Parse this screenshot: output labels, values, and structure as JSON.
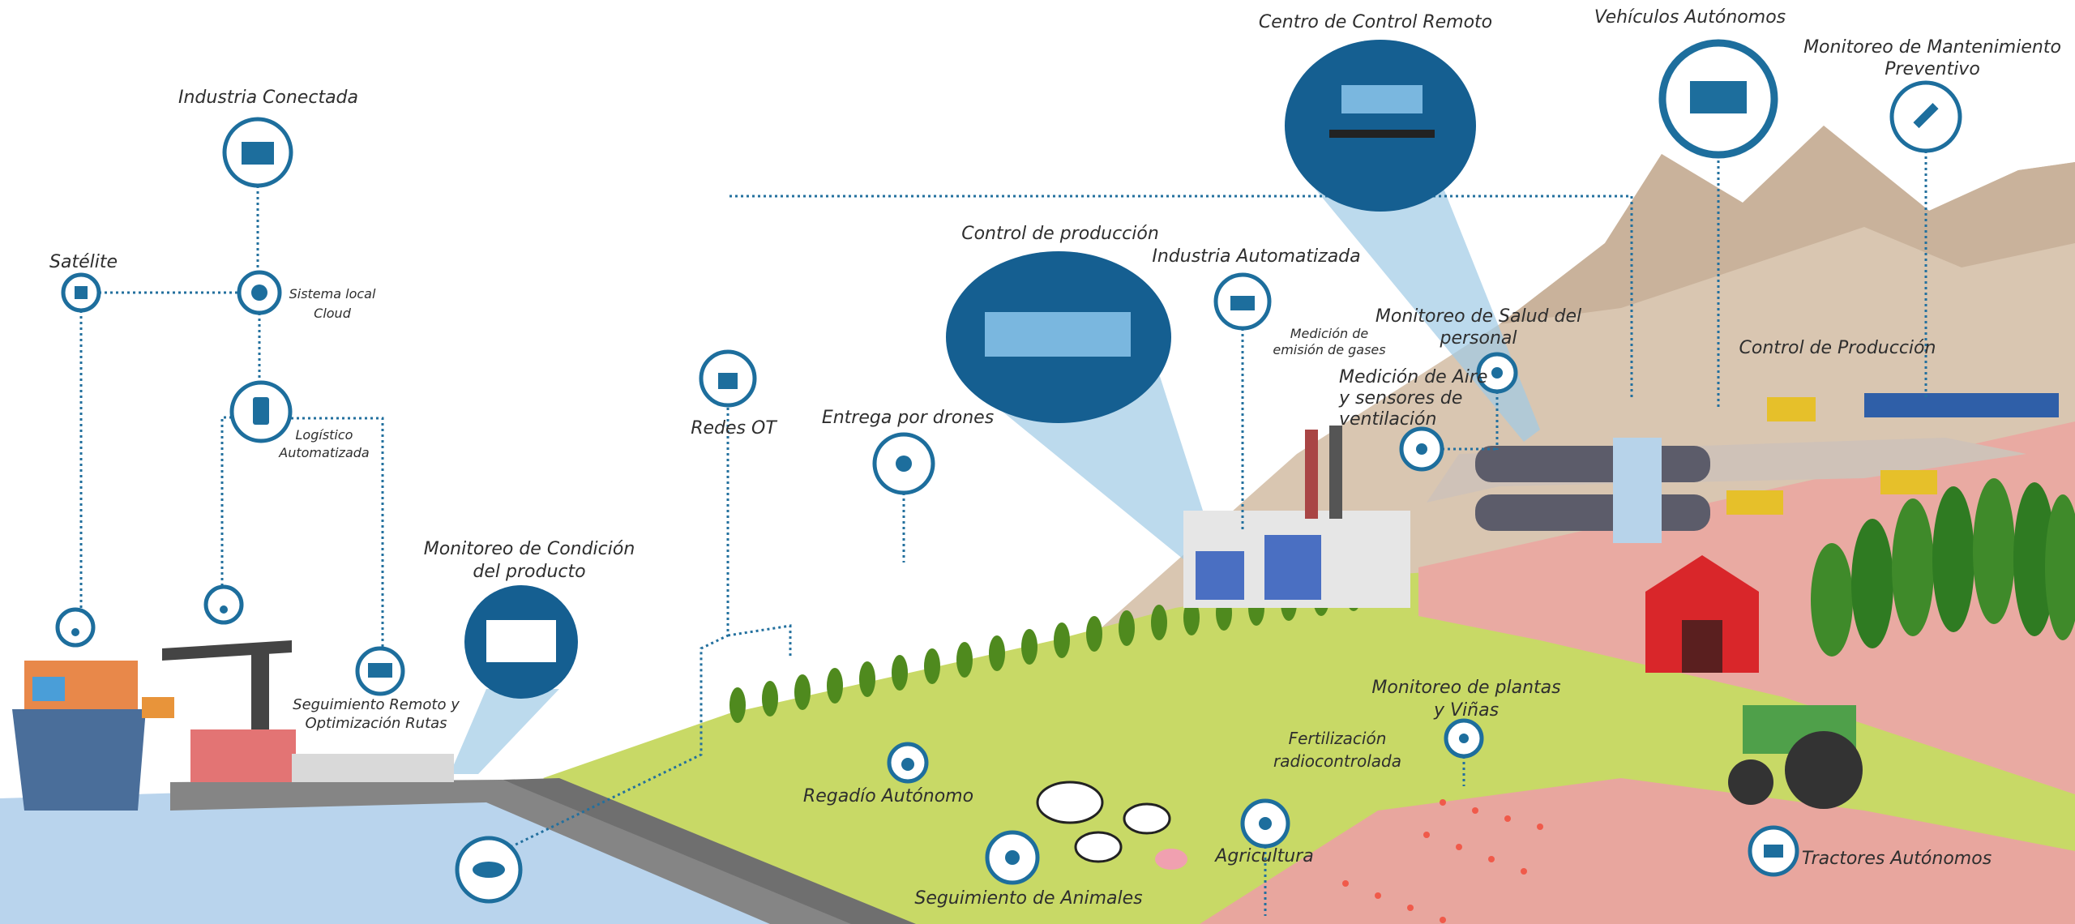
{
  "labels": {
    "industria_conectada": [
      "Industria Conectada"
    ],
    "satelite": [
      "Satélite"
    ],
    "sistema_local": [
      "Sistema local",
      "Cloud"
    ],
    "logistico": [
      "Logístico",
      "Automatizada"
    ],
    "monitoreo_condicion": [
      "Monitoreo de Condición",
      "del producto"
    ],
    "seguimiento_remoto": [
      "Seguimiento Remoto y",
      "Optimización Rutas"
    ],
    "redes_ot": [
      "Redes OT"
    ],
    "entrega_drones": [
      "Entrega por drones"
    ],
    "control_produccion_fabrica": [
      "Control de producción"
    ],
    "industria_automatizada": [
      "Industria Automatizada"
    ],
    "centro_control": [
      "Centro de Control Remoto"
    ],
    "vehiculos_autonomos": [
      "Vehículos Autónomos"
    ],
    "mantenimiento": [
      "Monitoreo de Mantenimiento",
      "Preventivo"
    ],
    "emision_gases": [
      "Medición de",
      "emisión de gases"
    ],
    "salud_personal": [
      "Monitoreo de Salud del",
      "personal"
    ],
    "medicion_aire": [
      "Medición de Aire",
      "y sensores de",
      "ventilación"
    ],
    "control_produccion_mina": [
      "Control de Producción"
    ],
    "plantas_vinas": [
      "Monitoreo de plantas",
      "y Viñas"
    ],
    "fertilizacion": [
      "Fertilización",
      "radiocontrolada"
    ],
    "regadio": [
      "Regadío Autónomo"
    ],
    "agricultura": [
      "Agricultura"
    ],
    "animales": [
      "Seguimiento de Animales"
    ],
    "tractores": [
      "Tractores Autónomos"
    ]
  }
}
